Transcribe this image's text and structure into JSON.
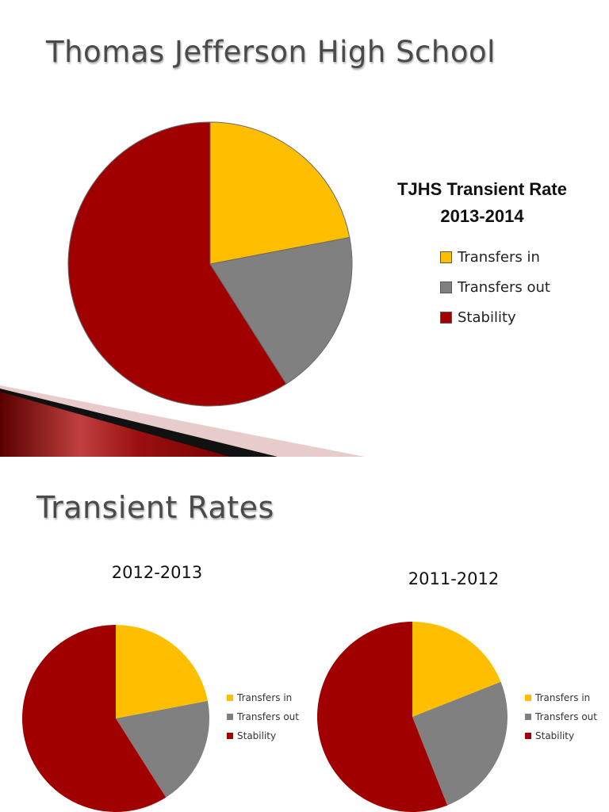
{
  "slide1": {
    "title": "Thomas Jefferson High School"
  },
  "slide2": {
    "title": "Transient Rates"
  },
  "colors": {
    "transfers_in": "#ffbf00",
    "transfers_out": "#808080",
    "stability": "#a00000",
    "title_text": "#4a4a4a"
  },
  "chart_data": [
    {
      "type": "pie",
      "title_line1": "TJHS Transient Rate",
      "title_line2": "2013-2014",
      "legend": "right",
      "labels": [
        "Transfers in",
        "Transfers out",
        "Stability"
      ],
      "values": [
        22,
        19,
        59
      ]
    },
    {
      "type": "pie",
      "title": "2012-2013",
      "legend": "right",
      "labels": [
        "Transfers in",
        "Transfers out",
        "Stability"
      ],
      "values": [
        22,
        19,
        59
      ]
    },
    {
      "type": "pie",
      "title": "2011-2012",
      "legend": "right",
      "labels": [
        "Transfers in",
        "Transfers out",
        "Stability"
      ],
      "values": [
        19,
        25,
        56
      ]
    }
  ]
}
